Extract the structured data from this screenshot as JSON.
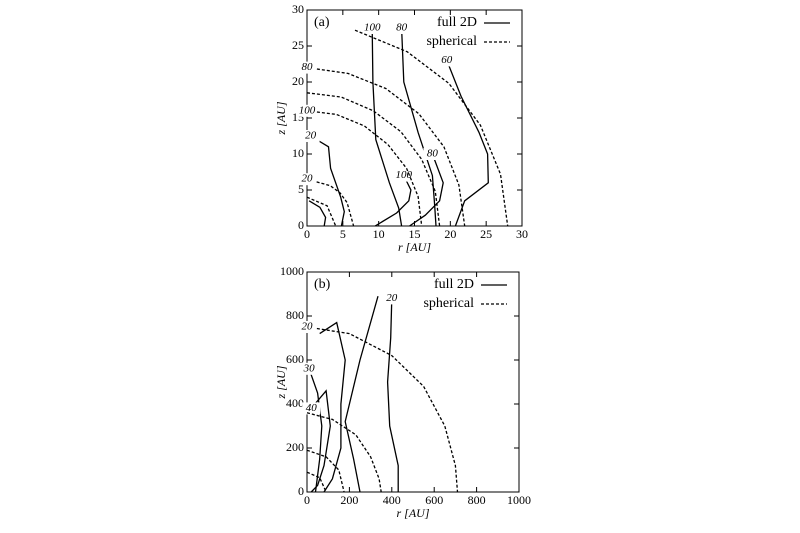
{
  "chart_data": [
    {
      "type": "contour",
      "panel": "(a)",
      "xlabel": "r [AU]",
      "ylabel": "z [AU]",
      "xlim": [
        0,
        30
      ],
      "ylim": [
        0,
        30
      ],
      "xticks": [
        0,
        5,
        10,
        15,
        20,
        25,
        30
      ],
      "yticks": [
        0,
        5,
        10,
        15,
        20,
        25,
        30
      ],
      "series": [
        {
          "name": "full 2D",
          "dash": false,
          "contours": [
            {
              "label": "100",
              "x": [
                9.1,
                9.2,
                9.6,
                11.5,
                12.8,
                13.2
              ],
              "y": [
                27.5,
                20,
                12,
                6,
                2.5,
                0
              ]
            },
            {
              "label": "80",
              "x": [
                13.2,
                13.5,
                15.5,
                17.5,
                17.8,
                18
              ],
              "y": [
                27.5,
                20,
                13,
                7,
                3,
                0
              ]
            },
            {
              "label": "60",
              "x": [
                19.5,
                21.5,
                24,
                25.2,
                25.3,
                22,
                20.7
              ],
              "y": [
                23,
                18,
                13,
                10,
                6,
                3.5,
                0
              ]
            },
            {
              "label": "100",
              "x": [
                13.5,
                14.5,
                14.2,
                12.5,
                9.5
              ],
              "y": [
                7,
                5,
                3.5,
                1.8,
                0
              ]
            },
            {
              "label": "80",
              "x": [
                17.5,
                19,
                18.5,
                16.5,
                14.3
              ],
              "y": [
                10,
                6,
                3.5,
                1.5,
                0
              ]
            },
            {
              "label": "20",
              "x": [
                0.5,
                3,
                3.3,
                4.7,
                5.2,
                4.8
              ],
              "y": [
                12.5,
                11,
                8,
                4,
                2,
                0
              ]
            },
            {
              "label": null,
              "x": [
                0.3,
                1.8,
                2.6,
                2.4
              ],
              "y": [
                3.5,
                2.6,
                1.2,
                0
              ]
            }
          ]
        },
        {
          "name": "spherical",
          "dash": true,
          "contours": [
            {
              "label": null,
              "x": [
                6.7,
                14,
                19.8,
                24.2,
                27,
                28
              ],
              "y": [
                27.2,
                24.2,
                19.8,
                14,
                7.2,
                0
              ]
            },
            {
              "label": "80",
              "x": [
                0,
                5.7,
                11,
                15.6,
                19.1,
                21.2,
                22
              ],
              "y": [
                22,
                21.2,
                19.1,
                15.6,
                11,
                5.7,
                0
              ]
            },
            {
              "label": null,
              "x": [
                0,
                4.8,
                9.25,
                13.1,
                16,
                17.9,
                18.5
              ],
              "y": [
                18.5,
                17.9,
                16,
                13.1,
                9.25,
                4.8,
                0
              ]
            },
            {
              "label": "100",
              "x": [
                0,
                4.1,
                8,
                11.3,
                13.9,
                15.5,
                16
              ],
              "y": [
                16,
                15.5,
                13.9,
                11.3,
                8,
                4.1,
                0
              ]
            },
            {
              "label": "20",
              "x": [
                0,
                3.25,
                4.6,
                5.6,
                6.5
              ],
              "y": [
                6.5,
                5.6,
                4.6,
                3.25,
                0
              ]
            },
            {
              "label": null,
              "x": [
                0,
                2.8,
                4
              ],
              "y": [
                4,
                2.8,
                0
              ]
            }
          ]
        }
      ]
    },
    {
      "type": "contour",
      "panel": "(b)",
      "xlabel": "r [AU]",
      "ylabel": "z [AU]",
      "xlim": [
        0,
        1000
      ],
      "ylim": [
        0,
        1000
      ],
      "xticks": [
        0,
        200,
        400,
        600,
        800,
        1000
      ],
      "yticks": [
        0,
        200,
        400,
        600,
        800,
        1000
      ],
      "series": [
        {
          "name": "full 2D",
          "dash": false,
          "contours": [
            {
              "label": "20",
              "x": [
                400,
                395,
                380,
                390,
                430,
                430
              ],
              "y": [
                880,
                700,
                500,
                300,
                120,
                0
              ]
            },
            {
              "label": null,
              "x": [
                335,
                250,
                180,
                220,
                250
              ],
              "y": [
                890,
                600,
                320,
                150,
                0
              ]
            },
            {
              "label": null,
              "x": [
                60,
                140,
                180,
                160,
                160,
                120,
                80
              ],
              "y": [
                720,
                770,
                600,
                400,
                200,
                60,
                0
              ]
            },
            {
              "label": "30",
              "x": [
                10,
                50,
                70,
                60,
                40
              ],
              "y": [
                560,
                450,
                300,
                150,
                0
              ]
            },
            {
              "label": "40",
              "x": [
                20,
                90,
                110,
                80,
                50,
                20
              ],
              "y": [
                380,
                460,
                300,
                120,
                30,
                0
              ]
            }
          ]
        },
        {
          "name": "spherical",
          "dash": true,
          "contours": [
            {
              "label": "20",
              "x": [
                0,
                200,
                400,
                550,
                650,
                700,
                710
              ],
              "y": [
                750,
                720,
                620,
                480,
                300,
                120,
                0
              ]
            },
            {
              "label": null,
              "x": [
                0,
                120,
                230,
                300,
                340,
                350
              ],
              "y": [
                360,
                330,
                260,
                160,
                60,
                0
              ]
            },
            {
              "label": null,
              "x": [
                0,
                90,
                150,
                175
              ],
              "y": [
                190,
                160,
                100,
                0
              ]
            },
            {
              "label": null,
              "x": [
                0,
                60,
                90
              ],
              "y": [
                90,
                65,
                0
              ]
            }
          ]
        }
      ]
    }
  ]
}
